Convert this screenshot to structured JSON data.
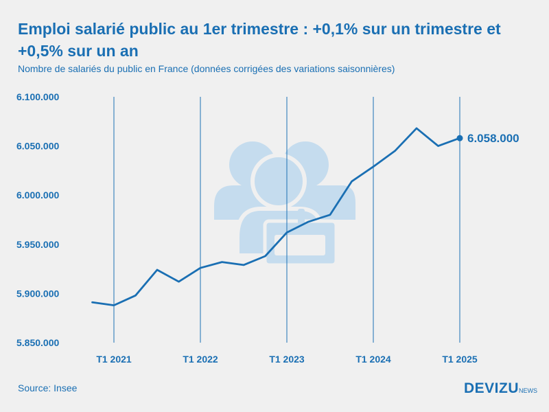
{
  "header": {
    "title": "Emploi salarié public au 1er trimestre : +0,1% sur un trimestre et +0,5% sur un an",
    "subtitle": "Nombre de salariés du public en France (données corrigées des variations saisonnières)"
  },
  "footer": {
    "source": "Source: Insee",
    "brand": "DEVIZU",
    "brand_suffix": "NEWS"
  },
  "colors": {
    "accent": "#1a6fb3",
    "background": "#f0f0f0",
    "watermark": "#c5dcee"
  },
  "chart_data": {
    "type": "line",
    "title": "Emploi salarié public au 1er trimestre : +0,1% sur un trimestre et +0,5% sur un an",
    "subtitle": "Nombre de salariés du public en France (données corrigées des variations saisonnières)",
    "xlabel": "",
    "ylabel": "",
    "ylim": [
      5850000,
      6100000
    ],
    "y_ticks": [
      5850000,
      5900000,
      5950000,
      6000000,
      6050000,
      6100000
    ],
    "y_tick_labels": [
      "5.850.000",
      "5.900.000",
      "5.950.000",
      "6.000.000",
      "6.050.000",
      "6.100.000"
    ],
    "x_ticks": [
      "T1 2021",
      "T1 2022",
      "T1 2023",
      "T1 2024",
      "T1 2025"
    ],
    "grid": "vertical",
    "x": [
      "T4 2020",
      "T1 2021",
      "T2 2021",
      "T3 2021",
      "T4 2021",
      "T1 2022",
      "T2 2022",
      "T3 2022",
      "T4 2022",
      "T1 2023",
      "T2 2023",
      "T3 2023",
      "T4 2023",
      "T1 2024",
      "T2 2024",
      "T3 2024",
      "T4 2024",
      "T1 2025"
    ],
    "series": [
      {
        "values": [
          5891000,
          5888000,
          5898000,
          5924000,
          5912000,
          5926000,
          5932000,
          5929000,
          5938000,
          5962000,
          5973000,
          5980000,
          6014000,
          6029000,
          6045000,
          6068000,
          6050000,
          6058000
        ]
      }
    ],
    "last_value_label": "6.058.000"
  }
}
